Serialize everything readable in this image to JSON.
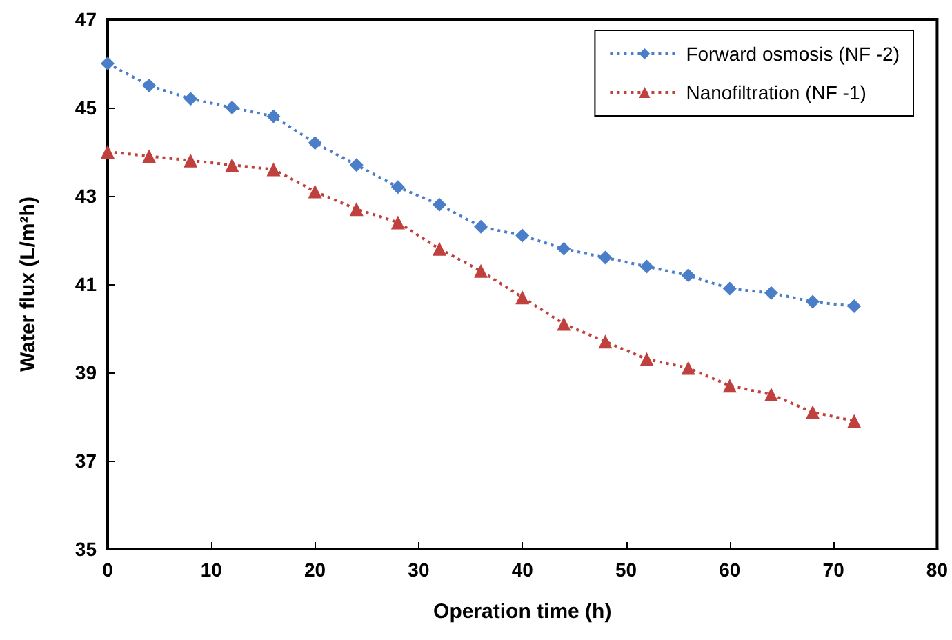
{
  "chart_data": {
    "type": "line",
    "xlabel": "Operation time (h)",
    "ylabel": "Water flux (L/m²h)",
    "x": [
      0,
      4,
      8,
      12,
      16,
      20,
      24,
      28,
      32,
      36,
      40,
      44,
      48,
      52,
      56,
      60,
      64,
      68,
      72
    ],
    "series": [
      {
        "name": "Forward osmosis (NF -2)",
        "color": "#4a7ec9",
        "marker": "diamond",
        "values": [
          46.0,
          45.5,
          45.2,
          45.0,
          44.8,
          44.2,
          43.7,
          43.2,
          42.8,
          42.3,
          42.1,
          41.8,
          41.6,
          41.4,
          41.2,
          40.9,
          40.8,
          40.6,
          40.5
        ]
      },
      {
        "name": "Nanofiltration (NF -1)",
        "color": "#c0403d",
        "marker": "triangle",
        "values": [
          44.0,
          43.9,
          43.8,
          43.7,
          43.6,
          43.1,
          42.7,
          42.4,
          41.8,
          41.3,
          40.7,
          40.1,
          39.7,
          39.3,
          39.1,
          38.7,
          38.5,
          38.1,
          37.9
        ]
      }
    ],
    "xlim": [
      0,
      80
    ],
    "xticks": [
      0,
      10,
      20,
      30,
      40,
      50,
      60,
      70,
      80
    ],
    "ylim": [
      35,
      47
    ],
    "yticks": [
      35,
      37,
      39,
      41,
      43,
      45,
      47
    ],
    "grid": false,
    "legend": "top right",
    "line_style": "dotted"
  }
}
